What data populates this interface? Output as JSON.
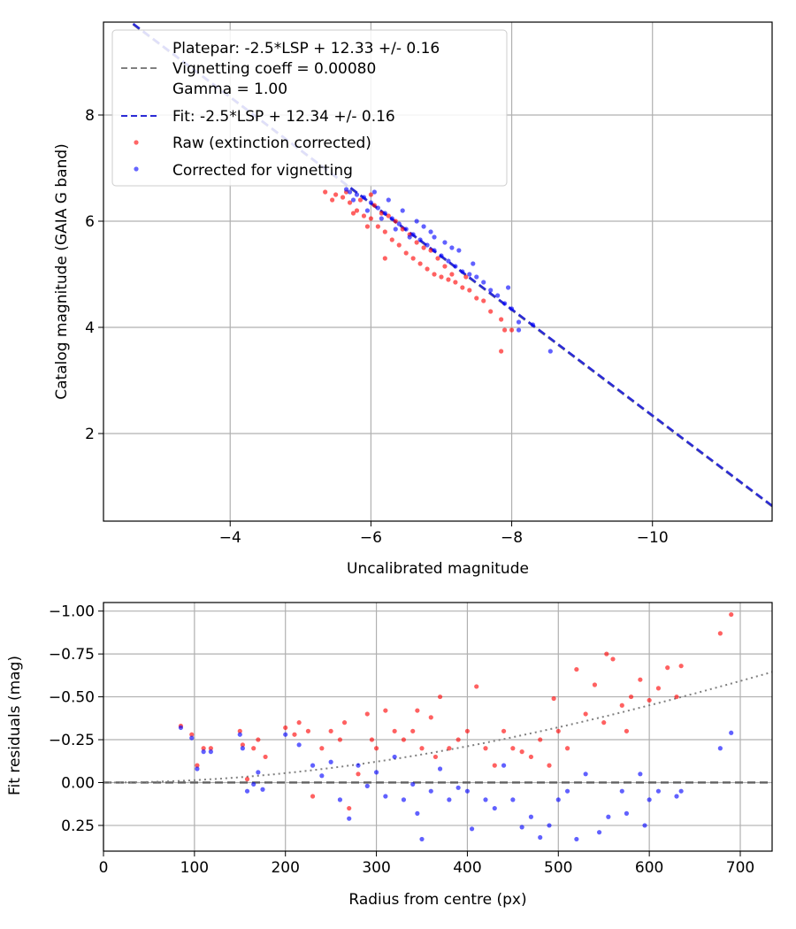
{
  "chart_data": [
    {
      "type": "scatter",
      "xlabel": "Uncalibrated magnitude",
      "ylabel": "Catalog magnitude (GAIA G band)",
      "xlim": [
        -2.2,
        -11.7
      ],
      "ylim": [
        9.75,
        0.35
      ],
      "x_ticks": [
        -4,
        -6,
        -8,
        -10
      ],
      "x_tick_labels": [
        "−4",
        "−6",
        "−8",
        "−10"
      ],
      "y_ticks": [
        2,
        4,
        6,
        8
      ],
      "y_tick_labels": [
        "2",
        "4",
        "6",
        "8"
      ],
      "grid": true,
      "legend_position": "upper-left",
      "legend": [
        {
          "marker": "line",
          "style": "dashed",
          "color": "#808080",
          "lines": [
            "Platepar: -2.5*LSP + 12.33 +/- 0.16",
            "Vignetting coeff = 0.00080",
            "Gamma = 1.00"
          ]
        },
        {
          "marker": "line",
          "style": "dashed",
          "color": "#2b2bd6",
          "lines": [
            "Fit: -2.5*LSP + 12.34 +/- 0.16"
          ]
        },
        {
          "marker": "dot",
          "color": "#ff0000",
          "lines": [
            "Raw (extinction corrected)"
          ]
        },
        {
          "marker": "dot",
          "color": "#0000ff",
          "lines": [
            "Corrected for vignetting"
          ]
        }
      ],
      "lines": [
        {
          "name": "Platepar",
          "slope": 1,
          "intercept": 12.33,
          "color": "#808080"
        },
        {
          "name": "Fit",
          "slope": 1,
          "intercept": 12.34,
          "color": "#2b2bd6"
        }
      ],
      "series": [
        {
          "name": "Raw (extinction corrected)",
          "color": "#ff0000",
          "points": [
            [
              -5.5,
              6.5
            ],
            [
              -5.6,
              6.45
            ],
            [
              -5.7,
              6.35
            ],
            [
              -5.8,
              6.2
            ],
            [
              -5.9,
              6.1
            ],
            [
              -6.0,
              6.05
            ],
            [
              -6.1,
              5.9
            ],
            [
              -6.2,
              5.8
            ],
            [
              -6.3,
              5.65
            ],
            [
              -6.4,
              5.55
            ],
            [
              -6.5,
              5.4
            ],
            [
              -6.6,
              5.3
            ],
            [
              -6.7,
              5.2
            ],
            [
              -6.8,
              5.1
            ],
            [
              -6.9,
              5.0
            ],
            [
              -7.0,
              4.95
            ],
            [
              -7.1,
              4.9
            ],
            [
              -7.2,
              4.85
            ],
            [
              -7.3,
              4.75
            ],
            [
              -7.4,
              4.7
            ],
            [
              -7.5,
              4.55
            ],
            [
              -7.6,
              4.5
            ],
            [
              -7.7,
              4.3
            ],
            [
              -7.85,
              4.15
            ],
            [
              -7.9,
              3.95
            ],
            [
              -7.85,
              3.55
            ],
            [
              -8.0,
              3.95
            ],
            [
              -6.2,
              5.3
            ],
            [
              -5.95,
              5.9
            ],
            [
              -5.75,
              6.15
            ],
            [
              -6.05,
              6.3
            ],
            [
              -6.35,
              6.0
            ],
            [
              -6.55,
              5.75
            ],
            [
              -6.75,
              5.5
            ],
            [
              -5.65,
              6.55
            ],
            [
              -5.85,
              6.4
            ],
            [
              -6.15,
              6.15
            ],
            [
              -6.45,
              5.85
            ],
            [
              -5.45,
              6.4
            ],
            [
              -5.35,
              6.55
            ],
            [
              -6.95,
              5.3
            ],
            [
              -7.15,
              5.0
            ],
            [
              -7.35,
              4.95
            ],
            [
              -7.05,
              5.15
            ],
            [
              -6.85,
              5.45
            ],
            [
              -6.65,
              5.6
            ],
            [
              -6.25,
              6.1
            ],
            [
              -6.0,
              6.5
            ]
          ]
        },
        {
          "name": "Corrected for vignetting",
          "color": "#0000ff",
          "points": [
            [
              -5.7,
              6.55
            ],
            [
              -5.8,
              6.5
            ],
            [
              -5.9,
              6.45
            ],
            [
              -6.0,
              6.35
            ],
            [
              -6.1,
              6.25
            ],
            [
              -6.2,
              6.15
            ],
            [
              -6.3,
              6.05
            ],
            [
              -6.4,
              5.95
            ],
            [
              -6.5,
              5.85
            ],
            [
              -6.6,
              5.75
            ],
            [
              -6.7,
              5.65
            ],
            [
              -6.8,
              5.55
            ],
            [
              -6.9,
              5.45
            ],
            [
              -7.0,
              5.35
            ],
            [
              -7.1,
              5.25
            ],
            [
              -7.2,
              5.15
            ],
            [
              -7.3,
              5.05
            ],
            [
              -7.4,
              5.0
            ],
            [
              -7.5,
              4.95
            ],
            [
              -7.6,
              4.85
            ],
            [
              -7.7,
              4.7
            ],
            [
              -7.8,
              4.6
            ],
            [
              -7.9,
              4.45
            ],
            [
              -8.0,
              4.35
            ],
            [
              -8.1,
              4.1
            ],
            [
              -8.55,
              3.55
            ],
            [
              -8.1,
              3.95
            ],
            [
              -8.3,
              4.05
            ],
            [
              -6.05,
              6.55
            ],
            [
              -6.25,
              6.4
            ],
            [
              -6.45,
              6.2
            ],
            [
              -6.65,
              6.0
            ],
            [
              -6.85,
              5.8
            ],
            [
              -7.05,
              5.6
            ],
            [
              -7.25,
              5.45
            ],
            [
              -5.95,
              6.2
            ],
            [
              -6.15,
              6.05
            ],
            [
              -6.35,
              5.85
            ],
            [
              -6.55,
              5.7
            ],
            [
              -5.75,
              6.4
            ],
            [
              -5.65,
              6.6
            ],
            [
              -6.75,
              5.9
            ],
            [
              -7.45,
              5.2
            ],
            [
              -7.15,
              5.5
            ],
            [
              -7.95,
              4.75
            ],
            [
              -6.9,
              5.7
            ]
          ]
        }
      ]
    },
    {
      "type": "scatter",
      "xlabel": "Radius from centre (px)",
      "ylabel": "Fit residuals (mag)",
      "xlim": [
        0,
        735
      ],
      "ylim": [
        -1.05,
        0.4
      ],
      "x_ticks": [
        0,
        100,
        200,
        300,
        400,
        500,
        600,
        700
      ],
      "x_tick_labels": [
        "0",
        "100",
        "200",
        "300",
        "400",
        "500",
        "600",
        "700"
      ],
      "y_ticks": [
        0.25,
        0.0,
        -0.25,
        -0.5,
        -0.75,
        -1.0
      ],
      "y_tick_labels": [
        "0.25",
        "0.00",
        "−0.25",
        "−0.50",
        "−0.75",
        "−1.00"
      ],
      "grid": true,
      "zero_line": {
        "y": 0,
        "style": "dashed",
        "color": "#606060"
      },
      "vignetting_curve": {
        "coeff": 0.0008,
        "style": "dotted",
        "color": "#808080"
      },
      "series": [
        {
          "name": "Raw (extinction corrected)",
          "color": "#ff0000",
          "points": [
            [
              85,
              -0.33
            ],
            [
              97,
              -0.28
            ],
            [
              103,
              -0.1
            ],
            [
              110,
              -0.2
            ],
            [
              118,
              -0.2
            ],
            [
              150,
              -0.3
            ],
            [
              153,
              -0.22
            ],
            [
              158,
              -0.02
            ],
            [
              165,
              -0.2
            ],
            [
              170,
              -0.25
            ],
            [
              178,
              -0.15
            ],
            [
              200,
              -0.32
            ],
            [
              210,
              -0.28
            ],
            [
              215,
              -0.35
            ],
            [
              225,
              -0.3
            ],
            [
              230,
              0.08
            ],
            [
              240,
              -0.2
            ],
            [
              250,
              -0.3
            ],
            [
              260,
              -0.25
            ],
            [
              265,
              -0.35
            ],
            [
              270,
              0.15
            ],
            [
              280,
              -0.05
            ],
            [
              290,
              -0.4
            ],
            [
              295,
              -0.25
            ],
            [
              300,
              -0.2
            ],
            [
              310,
              -0.42
            ],
            [
              320,
              -0.3
            ],
            [
              330,
              -0.25
            ],
            [
              340,
              -0.3
            ],
            [
              345,
              -0.42
            ],
            [
              350,
              -0.2
            ],
            [
              360,
              -0.38
            ],
            [
              365,
              -0.15
            ],
            [
              370,
              -0.5
            ],
            [
              380,
              -0.2
            ],
            [
              390,
              -0.25
            ],
            [
              400,
              -0.3
            ],
            [
              410,
              -0.56
            ],
            [
              420,
              -0.2
            ],
            [
              430,
              -0.1
            ],
            [
              440,
              -0.3
            ],
            [
              450,
              -0.2
            ],
            [
              460,
              -0.18
            ],
            [
              470,
              -0.15
            ],
            [
              480,
              -0.25
            ],
            [
              490,
              -0.1
            ],
            [
              495,
              -0.49
            ],
            [
              500,
              -0.3
            ],
            [
              510,
              -0.2
            ],
            [
              520,
              -0.66
            ],
            [
              530,
              -0.4
            ],
            [
              540,
              -0.57
            ],
            [
              550,
              -0.35
            ],
            [
              553,
              -0.75
            ],
            [
              560,
              -0.72
            ],
            [
              570,
              -0.45
            ],
            [
              575,
              -0.3
            ],
            [
              580,
              -0.5
            ],
            [
              590,
              -0.6
            ],
            [
              600,
              -0.48
            ],
            [
              610,
              -0.55
            ],
            [
              620,
              -0.67
            ],
            [
              630,
              -0.5
            ],
            [
              635,
              -0.68
            ],
            [
              678,
              -0.87
            ],
            [
              690,
              -0.98
            ]
          ]
        },
        {
          "name": "Corrected for vignetting",
          "color": "#0000ff",
          "points": [
            [
              85,
              -0.32
            ],
            [
              97,
              -0.26
            ],
            [
              103,
              -0.08
            ],
            [
              110,
              -0.18
            ],
            [
              118,
              -0.18
            ],
            [
              150,
              -0.28
            ],
            [
              153,
              -0.2
            ],
            [
              158,
              0.05
            ],
            [
              165,
              0.01
            ],
            [
              170,
              -0.06
            ],
            [
              175,
              0.04
            ],
            [
              200,
              -0.28
            ],
            [
              215,
              -0.22
            ],
            [
              230,
              -0.1
            ],
            [
              240,
              -0.04
            ],
            [
              250,
              -0.12
            ],
            [
              260,
              0.1
            ],
            [
              270,
              0.21
            ],
            [
              280,
              -0.1
            ],
            [
              290,
              0.02
            ],
            [
              300,
              -0.06
            ],
            [
              310,
              0.08
            ],
            [
              320,
              -0.15
            ],
            [
              330,
              0.1
            ],
            [
              340,
              0.01
            ],
            [
              345,
              0.18
            ],
            [
              350,
              0.33
            ],
            [
              360,
              0.05
            ],
            [
              370,
              -0.08
            ],
            [
              380,
              0.1
            ],
            [
              390,
              0.03
            ],
            [
              400,
              0.05
            ],
            [
              405,
              0.27
            ],
            [
              420,
              0.1
            ],
            [
              430,
              0.15
            ],
            [
              440,
              -0.1
            ],
            [
              450,
              0.1
            ],
            [
              460,
              0.26
            ],
            [
              470,
              0.2
            ],
            [
              480,
              0.32
            ],
            [
              490,
              0.25
            ],
            [
              500,
              0.1
            ],
            [
              510,
              0.05
            ],
            [
              520,
              0.33
            ],
            [
              530,
              -0.05
            ],
            [
              545,
              0.29
            ],
            [
              555,
              0.2
            ],
            [
              570,
              0.05
            ],
            [
              575,
              0.18
            ],
            [
              590,
              -0.05
            ],
            [
              595,
              0.25
            ],
            [
              600,
              0.1
            ],
            [
              610,
              0.05
            ],
            [
              630,
              0.08
            ],
            [
              635,
              0.05
            ],
            [
              678,
              -0.2
            ],
            [
              690,
              -0.29
            ]
          ]
        }
      ]
    }
  ]
}
